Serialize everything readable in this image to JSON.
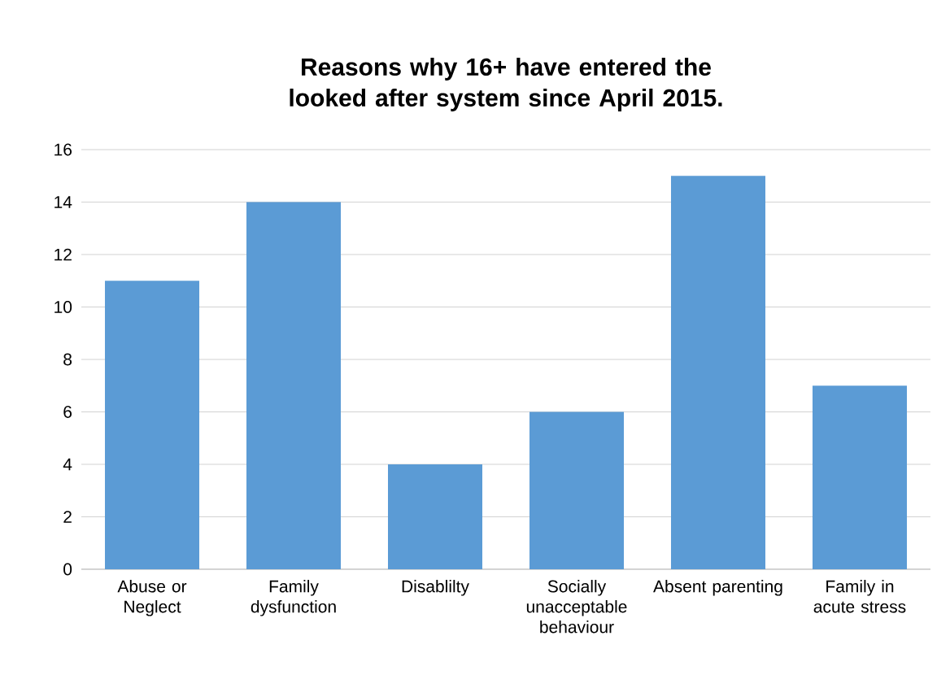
{
  "chart_data": {
    "type": "bar",
    "title": "Reasons why 16+ have entered the looked after system since April 2015.",
    "categories": [
      "Abuse or Neglect",
      "Family dysfunction",
      "Disablilty",
      "Socially unacceptable behaviour",
      "Absent parenting",
      "Family in acute stress"
    ],
    "values": [
      11,
      14,
      4,
      6,
      15,
      7
    ],
    "color": "#5b9bd5",
    "ylim": [
      0,
      16
    ],
    "yticks": [
      0,
      2,
      4,
      6,
      8,
      10,
      12,
      14,
      16
    ],
    "grid": true
  }
}
